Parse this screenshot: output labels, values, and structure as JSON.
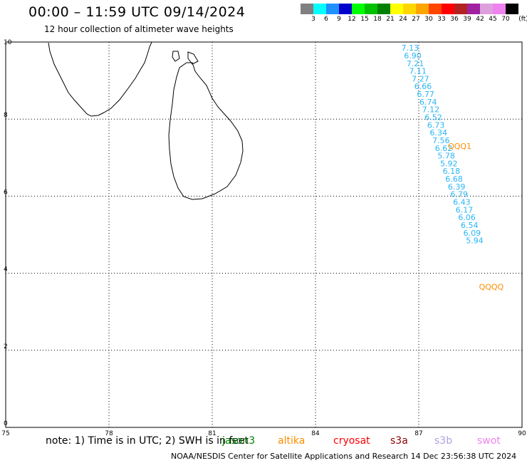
{
  "title": "00:00 – 11:59 UTC 09/14/2024",
  "subtitle": "12 hour collection of altimeter wave heights",
  "legend": {
    "labels": [
      "3",
      "6",
      "9",
      "12",
      "15",
      "18",
      "21",
      "24",
      "27",
      "30",
      "33",
      "36",
      "39",
      "42",
      "45",
      "70"
    ],
    "unit": "(ft)",
    "colors": [
      "#808080",
      "#00ffff",
      "#1e90ff",
      "#0000cd",
      "#00ff00",
      "#00c000",
      "#008000",
      "#ffff00",
      "#ffd700",
      "#ffa500",
      "#ff4500",
      "#ff0000",
      "#b22222",
      "#a020a0",
      "#dda0dd",
      "#ee82ee",
      "#000000"
    ]
  },
  "axes": {
    "x_ticks": [
      75,
      78,
      81,
      84,
      87,
      90
    ],
    "y_ticks": [
      0,
      2,
      4,
      6,
      8,
      10
    ],
    "x_range": [
      75,
      90
    ],
    "y_range": [
      0,
      10
    ]
  },
  "track1": {
    "color": "#29b6f6",
    "lon_step": 0.075,
    "lat_step": -0.2,
    "start_lon": 86.75,
    "start_lat": 9.85,
    "values": [
      "7.13",
      "6.90",
      "7.21",
      "7.11",
      "7.27",
      "6.66",
      "6.77",
      "6.74",
      "7.12",
      "6.52",
      "6.73",
      "6.34",
      "7.56",
      "6.62",
      "5.78",
      "5.92",
      "6.18",
      "6.68",
      "6.39",
      "6.79",
      "6.43",
      "6.17",
      "6.06",
      "6.54",
      "6.09",
      "5.94"
    ]
  },
  "markers": [
    {
      "text": "QQQ1",
      "lon": 87.85,
      "lat": 7.3,
      "color": "#ff8c00"
    },
    {
      "text": "QQQQ",
      "lon": 88.75,
      "lat": 3.65,
      "color": "#ff8c00"
    }
  ],
  "note": "note: 1) Time is in UTC; 2) SWH is in feet",
  "satellites": [
    {
      "name": "jason3",
      "color": "#008000"
    },
    {
      "name": "altika",
      "color": "#ff8c00"
    },
    {
      "name": "cryosat",
      "color": "#ff0000"
    },
    {
      "name": "s3a",
      "color": "#8b0000"
    },
    {
      "name": "s3b",
      "color": "#b0a0e0"
    },
    {
      "name": "swot",
      "color": "#ee82ee"
    }
  ],
  "credit": "NOAA/NESDIS Center for Satellite Applications and Research    14 Dec 23:56:38 UTC 2024"
}
